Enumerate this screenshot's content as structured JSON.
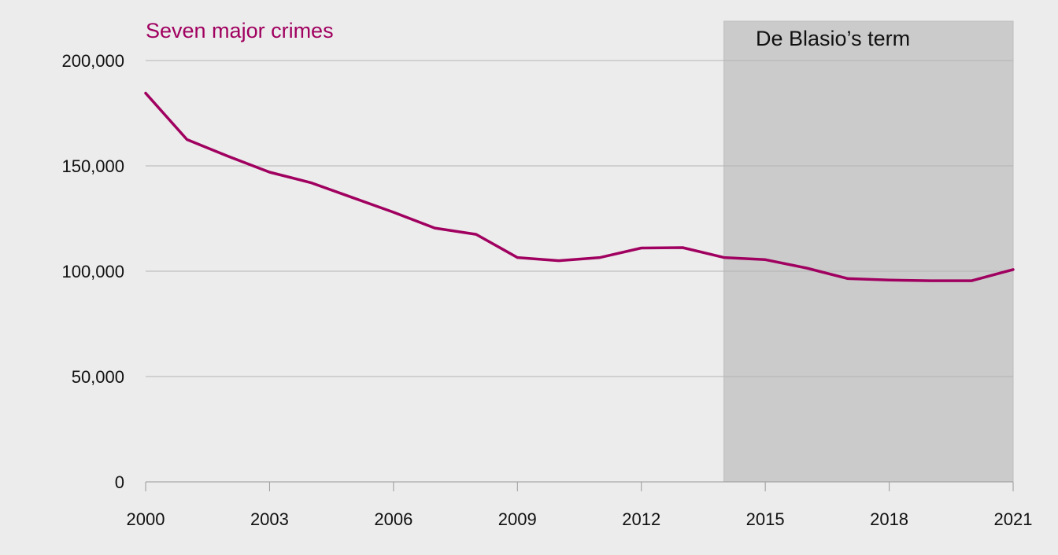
{
  "chart_data": {
    "type": "line",
    "title": "",
    "xlabel": "",
    "ylabel": "",
    "xlim": [
      2000,
      2021
    ],
    "ylim": [
      0,
      200000
    ],
    "x_ticks": [
      2000,
      2003,
      2006,
      2009,
      2012,
      2015,
      2018,
      2021
    ],
    "y_ticks": [
      0,
      50000,
      100000,
      150000,
      200000
    ],
    "y_tick_labels": [
      "0",
      "50,000",
      "100,000",
      "150,000",
      "200,000"
    ],
    "grid": true,
    "series": [
      {
        "name": "Seven major crimes",
        "color": "#a0005f",
        "x": [
          2000,
          2001,
          2002,
          2003,
          2004,
          2005,
          2006,
          2007,
          2008,
          2009,
          2010,
          2011,
          2012,
          2013,
          2014,
          2015,
          2016,
          2017,
          2018,
          2019,
          2020,
          2021
        ],
        "values": [
          184500,
          162500,
          154500,
          147000,
          142000,
          135000,
          128000,
          120500,
          117500,
          106500,
          105000,
          106500,
          111000,
          111200,
          106500,
          105500,
          101500,
          96500,
          95800,
          95500,
          95500,
          100800
        ]
      }
    ],
    "annotations": [
      {
        "type": "shaded-band",
        "label": "De Blasio’s term",
        "x_start": 2014,
        "x_end": 2021,
        "color": "#cbcbcb"
      }
    ]
  },
  "colors": {
    "background": "#ececec",
    "gridline": "#b3b3b3",
    "axis": "#999999"
  }
}
